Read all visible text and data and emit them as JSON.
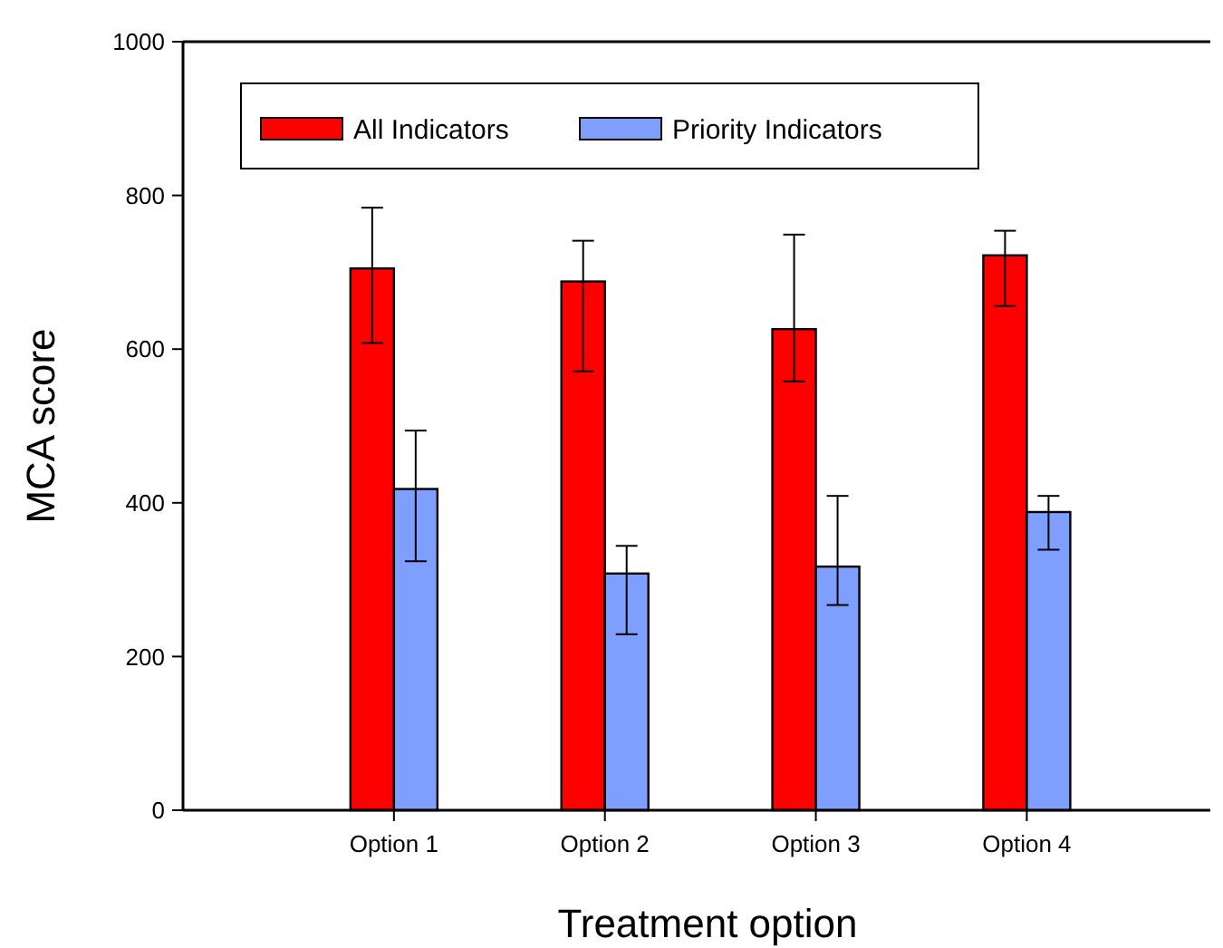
{
  "chart_data": {
    "type": "bar",
    "xlabel": "Treatment option",
    "ylabel": "MCA score",
    "categories": [
      "Option 1",
      "Option 2",
      "Option 3",
      "Option 4"
    ],
    "series": [
      {
        "name": "All Indicators",
        "color": "#ff0000",
        "values": [
          705,
          688,
          626,
          722
        ],
        "errors": [
          [
            608,
            784
          ],
          [
            571,
            741
          ],
          [
            558,
            749
          ],
          [
            656,
            754
          ]
        ]
      },
      {
        "name": "Priority Indicators",
        "color": "#7f9fff",
        "values": [
          418,
          308,
          317,
          388
        ],
        "errors": [
          [
            324,
            494
          ],
          [
            229,
            344
          ],
          [
            267,
            409
          ],
          [
            339,
            409
          ]
        ]
      }
    ],
    "ylim": [
      0,
      1000
    ],
    "yticks": [
      0,
      200,
      400,
      600,
      800,
      1000
    ],
    "legend": "top left",
    "grid": false
  }
}
